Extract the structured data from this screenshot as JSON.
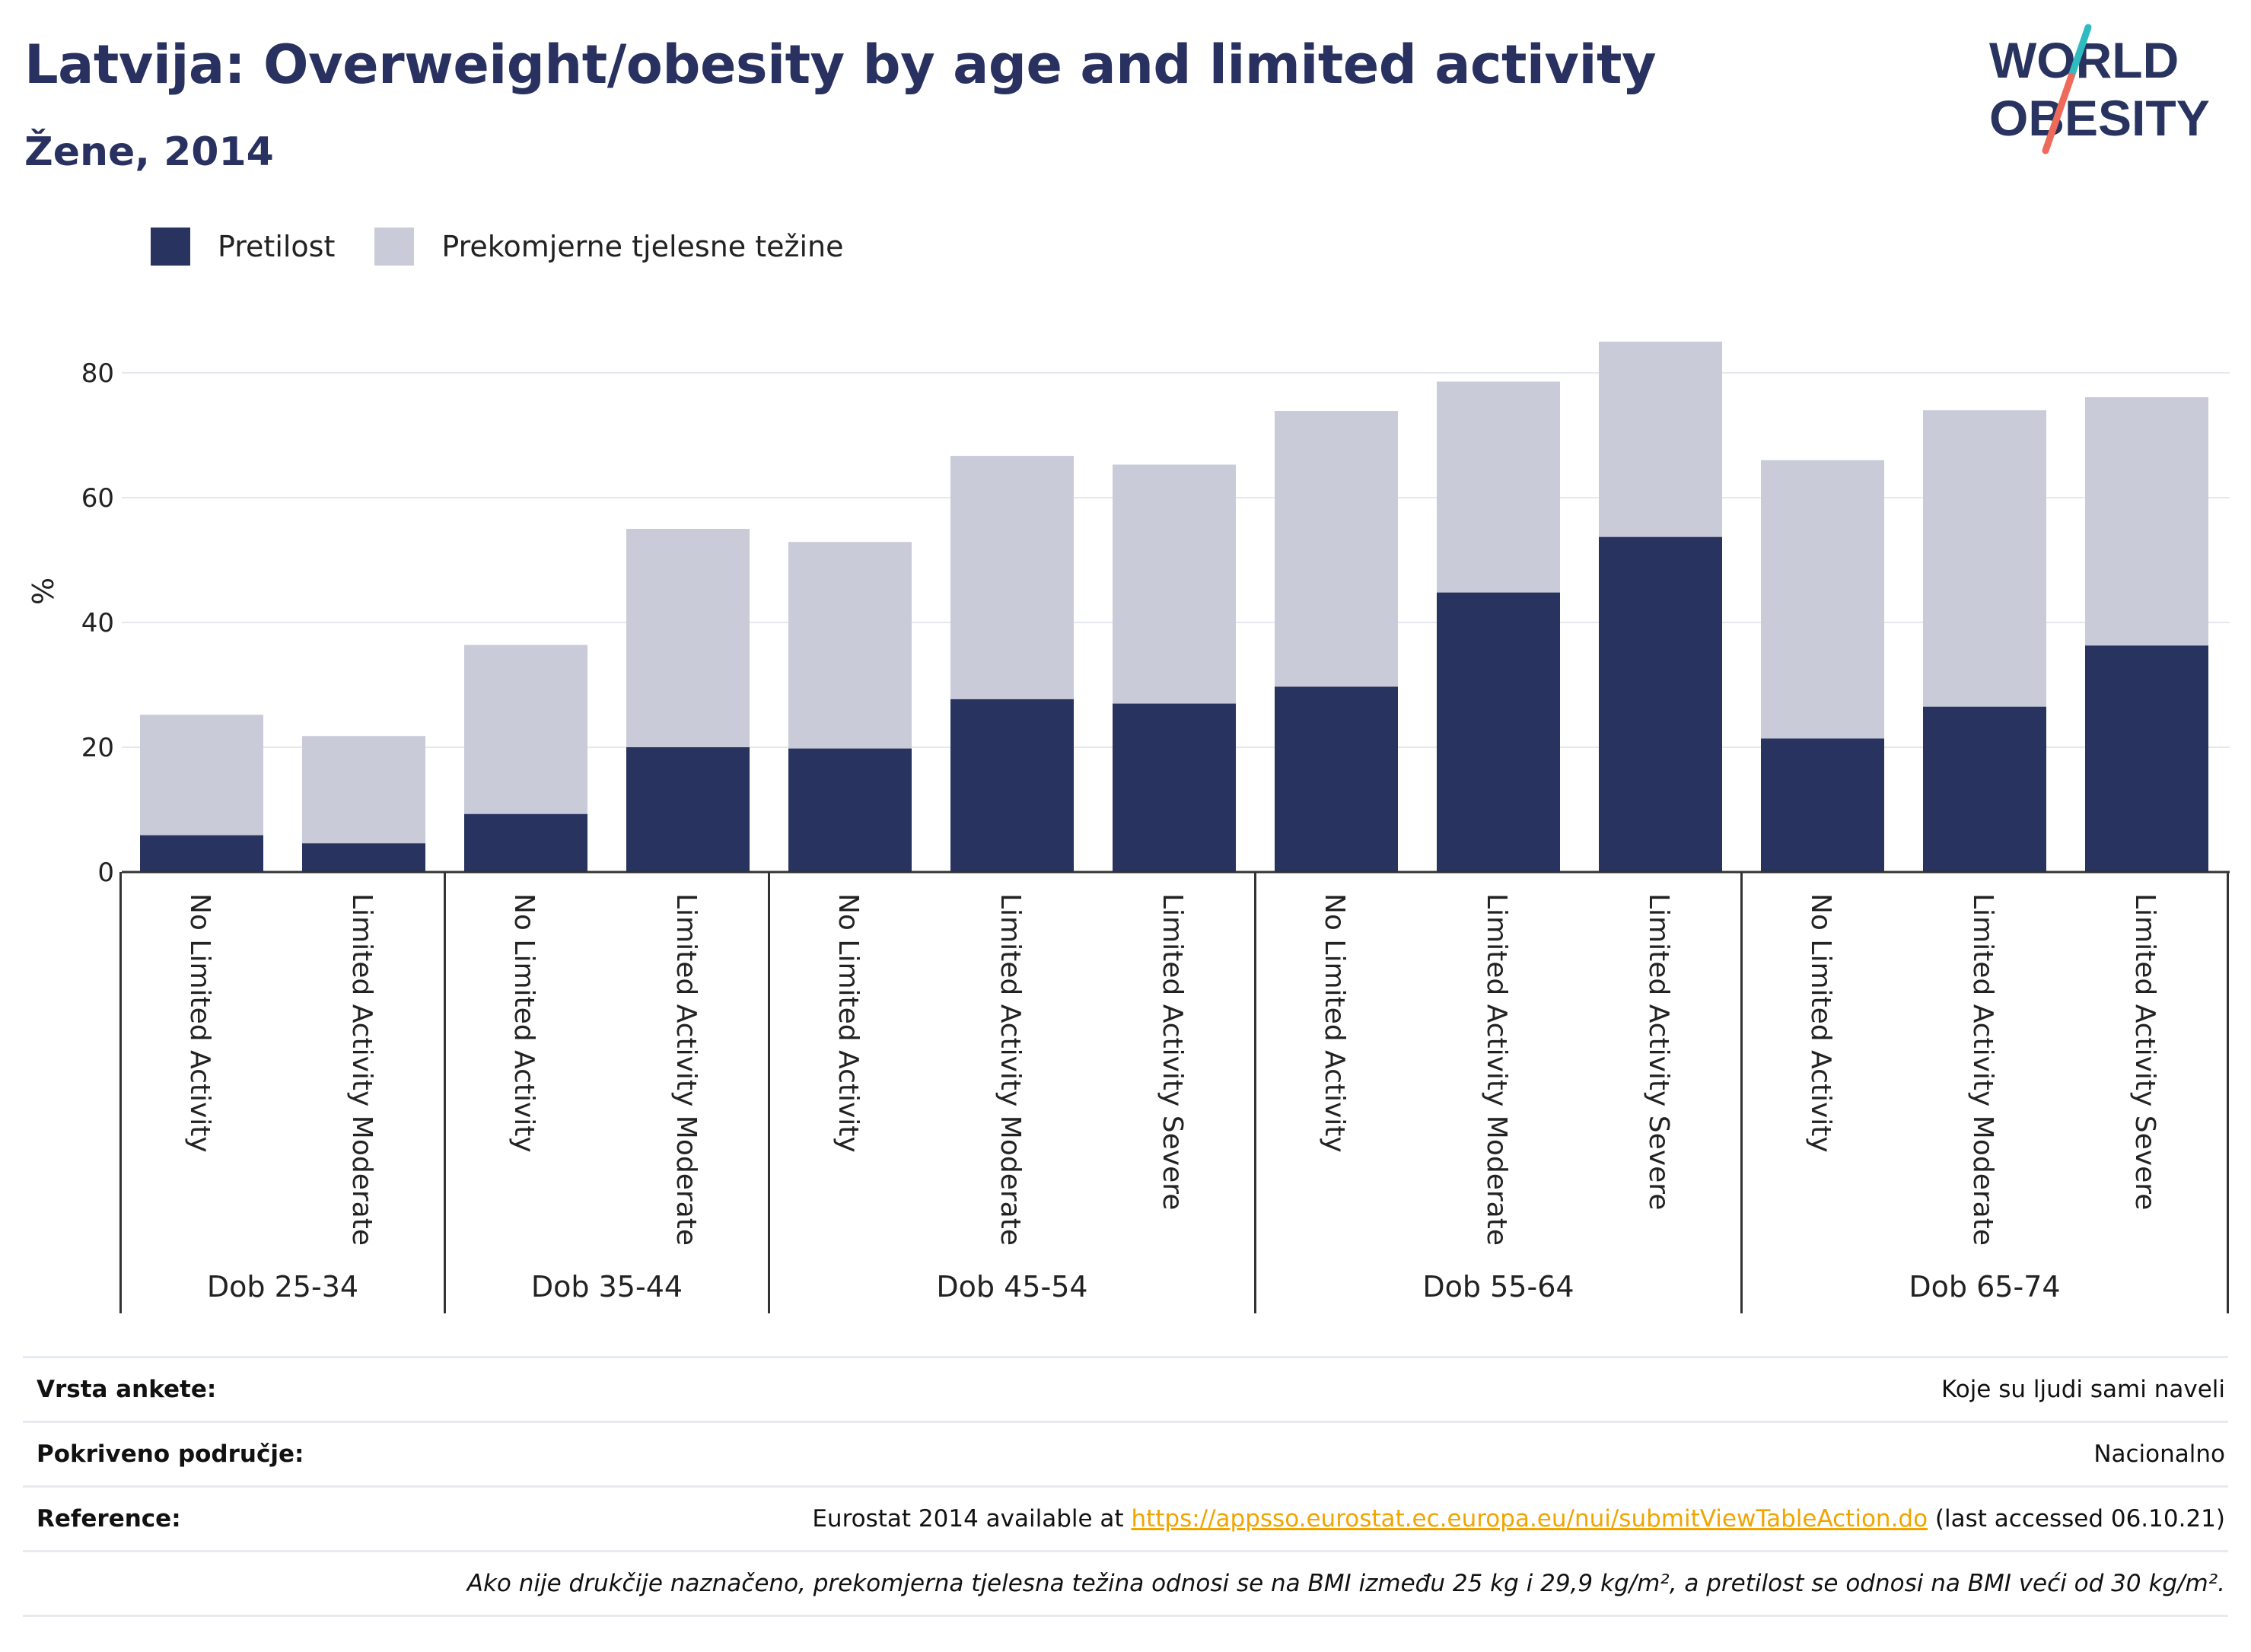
{
  "header": {
    "title": "Latvija: Overweight/obesity by age and limited activity",
    "subtitle": "Žene, 2014"
  },
  "logo": {
    "line1": "WORLD",
    "line2": "OBESITY"
  },
  "colors": {
    "obesity": "#28335f",
    "overweight": "#c9ccd8",
    "axis": "#333333",
    "grid": "#e6e8ef",
    "link": "#f0a500"
  },
  "legend": [
    {
      "label": "Pretilost",
      "color": "#28335f"
    },
    {
      "label": "Prekomjerne tjelesne težine",
      "color": "#c9ccd8"
    }
  ],
  "chart_data": {
    "type": "bar",
    "stacked": true,
    "ylabel": "%",
    "ylim": [
      0,
      90
    ],
    "yticks": [
      0,
      20,
      40,
      60,
      80
    ],
    "grid": true,
    "legend_position": "top-left",
    "groups": [
      {
        "label": "Dob 25-34",
        "categories": [
          "No Limited Activity",
          "Limited Activity Moderate"
        ]
      },
      {
        "label": "Dob 35-44",
        "categories": [
          "No Limited Activity",
          "Limited Activity Moderate"
        ]
      },
      {
        "label": "Dob 45-54",
        "categories": [
          "No Limited Activity",
          "Limited Activity Moderate",
          "Limited Activity Severe"
        ]
      },
      {
        "label": "Dob 55-64",
        "categories": [
          "No Limited Activity",
          "Limited Activity Moderate",
          "Limited Activity Severe"
        ]
      },
      {
        "label": "Dob 65-74",
        "categories": [
          "No Limited Activity",
          "Limited Activity Moderate",
          "Limited Activity Severe"
        ]
      }
    ],
    "series": [
      {
        "name": "Pretilost",
        "values": [
          5.9,
          4.6,
          9.3,
          20.0,
          19.8,
          27.7,
          27.0,
          29.7,
          44.8,
          53.7,
          21.4,
          26.5,
          36.3
        ]
      },
      {
        "name": "Prekomjerne tjelesne težine",
        "values": [
          19.3,
          17.2,
          27.1,
          35.0,
          33.1,
          39.0,
          38.3,
          44.2,
          33.8,
          31.3,
          44.6,
          47.5,
          39.8
        ]
      }
    ]
  },
  "info": {
    "survey_type": {
      "label": "Vrsta ankete:",
      "value": "Koje su ljudi sami naveli"
    },
    "coverage": {
      "label": "Pokriveno područje:",
      "value": "Nacionalno"
    },
    "reference": {
      "label": "Reference:",
      "prefix": "Eurostat 2014 available at ",
      "link": "https://appsso.eurostat.ec.europa.eu/nui/submitViewTableAction.do",
      "suffix": " (last accessed 06.10.21)"
    },
    "note": "Ako nije drukčije naznačeno, prekomjerna tjelesna težina odnosi se na BMI između 25 kg i 29,9 kg/m², a pretilost se odnosi na BMI veći od 30 kg/m²."
  }
}
